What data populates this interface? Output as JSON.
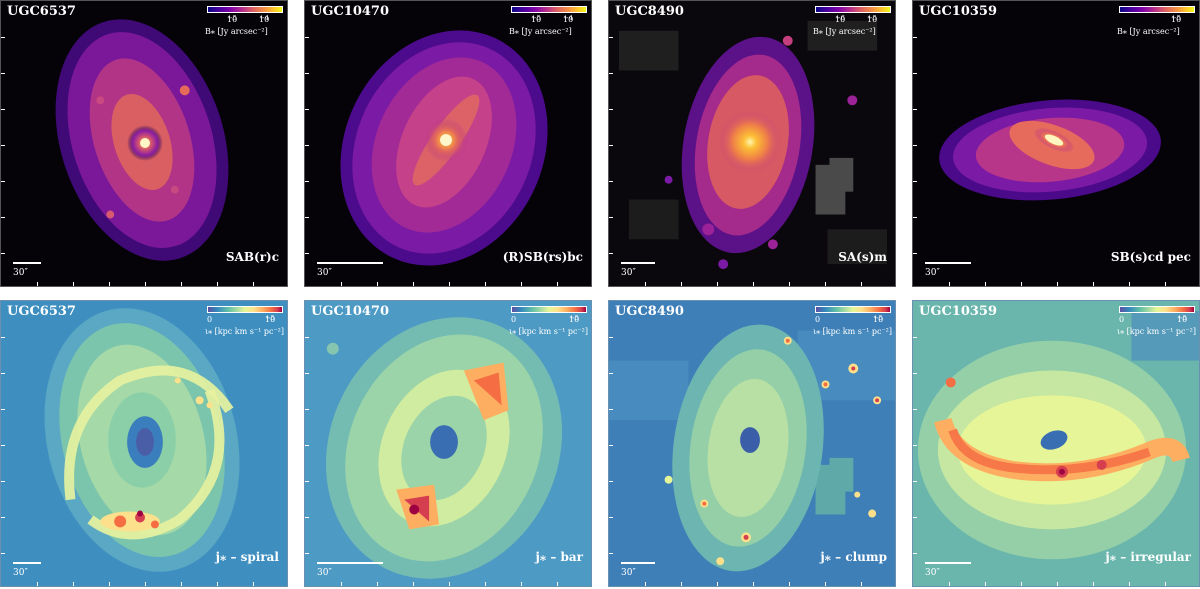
{
  "panels_top": [
    {
      "galaxy": "UGC6537",
      "colorbar_ticks": [
        "10",
        "10"
      ],
      "colorbar_exps": [
        "−5",
        "−4"
      ],
      "colorbar_unit": "B⁎ [Jy arcsec⁻²]",
      "scale_label": "30″",
      "classification": "SAB(r)c"
    },
    {
      "galaxy": "UGC10470",
      "colorbar_ticks": [
        "10",
        "10"
      ],
      "colorbar_exps": [
        "−5",
        "−4"
      ],
      "colorbar_unit": "B⁎ [Jy arcsec⁻²]",
      "scale_label": "30″",
      "classification": "(R)SB(rs)bc"
    },
    {
      "galaxy": "UGC8490",
      "colorbar_ticks": [
        "10",
        "10"
      ],
      "colorbar_exps": [
        "−6",
        "−5"
      ],
      "colorbar_unit": "B⁎ [Jy arcsec⁻²]",
      "scale_label": "30″",
      "classification": "SA(s)m"
    },
    {
      "galaxy": "UGC10359",
      "colorbar_ticks": [
        "",
        "10"
      ],
      "colorbar_exps": [
        "",
        "−5"
      ],
      "colorbar_unit": "B⁎ [Jy arcsec⁻²]",
      "scale_label": "30″",
      "classification": "SB(s)cd pec"
    }
  ],
  "panels_bottom": [
    {
      "galaxy": "UGC6537",
      "colorbar_ticks": [
        "0",
        "10"
      ],
      "colorbar_exps": [
        "",
        "−5"
      ],
      "colorbar_unit": "ι⁎ [kpc km s⁻¹ pc⁻²]",
      "scale_label": "30″",
      "classification": "j⁎ – spiral"
    },
    {
      "galaxy": "UGC10470",
      "colorbar_ticks": [
        "0",
        "10"
      ],
      "colorbar_exps": [
        "",
        "−5"
      ],
      "colorbar_unit": "ι⁎ [kpc km s⁻¹ pc⁻²]",
      "scale_label": "30″",
      "classification": "j⁎ – bar"
    },
    {
      "galaxy": "UGC8490",
      "colorbar_ticks": [
        "0",
        "10"
      ],
      "colorbar_exps": [
        "",
        "−5"
      ],
      "colorbar_unit": "ι⁎ [kpc km s⁻¹ pc⁻²]",
      "scale_label": "30″",
      "classification": "j⁎ – clump"
    },
    {
      "galaxy": "UGC10359",
      "colorbar_ticks": [
        "0",
        "10"
      ],
      "colorbar_exps": [
        "",
        "−5"
      ],
      "colorbar_unit": "ι⁎ [kpc km s⁻¹ pc⁻²]",
      "scale_label": "30″",
      "classification": "j⁎ – irregular"
    }
  ]
}
